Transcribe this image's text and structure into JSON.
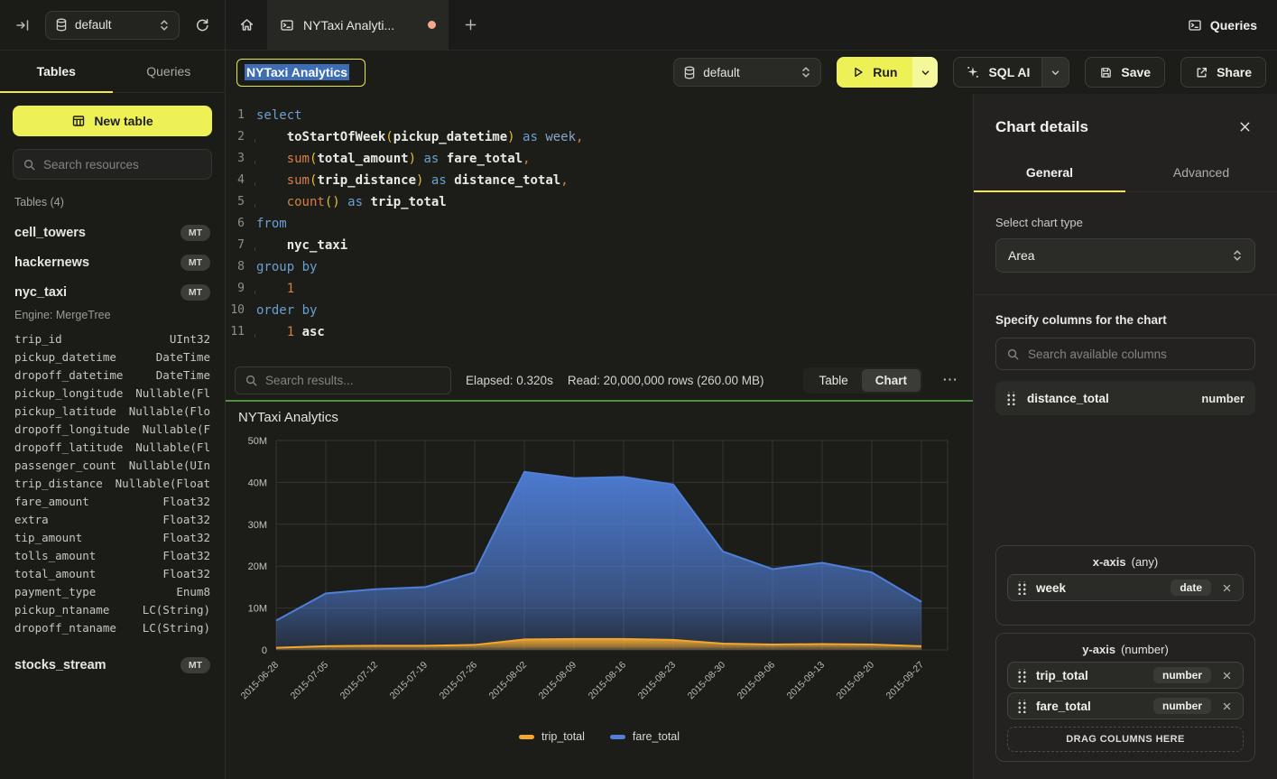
{
  "colors": {
    "accent_yellow": "#eef155",
    "tab_underline": "#f1e94a",
    "results_divider_green": "#4c9440",
    "title_selection_blue": "#3d6db2",
    "unsaved_dot": "#f2a98c",
    "series_trip_total": "#f2a72e",
    "series_fare_total": "#4f7fd9"
  },
  "topbar": {
    "db_selector": {
      "value": "default"
    },
    "tab": {
      "label": "NYTaxi Analyti..."
    },
    "queries_label": "Queries"
  },
  "sidebar": {
    "tabs": [
      {
        "label": "Tables"
      },
      {
        "label": "Queries"
      }
    ],
    "active_tab": "Tables",
    "new_table_label": "New table",
    "search_placeholder": "Search resources",
    "section_label": "Tables (4)",
    "tables": [
      {
        "name": "cell_towers",
        "badge": "MT"
      },
      {
        "name": "hackernews",
        "badge": "MT"
      },
      {
        "name": "nyc_taxi",
        "badge": "MT",
        "engine": "Engine: MergeTree",
        "columns": [
          [
            "trip_id",
            "UInt32"
          ],
          [
            "pickup_datetime",
            "DateTime"
          ],
          [
            "dropoff_datetime",
            "DateTime"
          ],
          [
            "pickup_longitude",
            "Nullable(Fl"
          ],
          [
            "pickup_latitude",
            "Nullable(Flo"
          ],
          [
            "dropoff_longitude",
            "Nullable(F"
          ],
          [
            "dropoff_latitude",
            "Nullable(Fl"
          ],
          [
            "passenger_count",
            "Nullable(UIn"
          ],
          [
            "trip_distance",
            "Nullable(Float"
          ],
          [
            "fare_amount",
            "Float32"
          ],
          [
            "extra",
            "Float32"
          ],
          [
            "tip_amount",
            "Float32"
          ],
          [
            "tolls_amount",
            "Float32"
          ],
          [
            "total_amount",
            "Float32"
          ],
          [
            "payment_type",
            "Enum8"
          ],
          [
            "pickup_ntaname",
            "LC(String)"
          ],
          [
            "dropoff_ntaname",
            "LC(String)"
          ]
        ]
      },
      {
        "name": "stocks_stream",
        "badge": "MT"
      }
    ]
  },
  "toolbar": {
    "title_value": "NYTaxi Analytics",
    "db_value": "default",
    "run_label": "Run",
    "sql_ai_label": "SQL AI",
    "save_label": "Save",
    "share_label": "Share"
  },
  "editor": {
    "lines": [
      {
        "n": "1",
        "indent": false,
        "tokens": [
          [
            "kw",
            "select"
          ]
        ]
      },
      {
        "n": "2",
        "indent": true,
        "tokens": [
          [
            "id",
            "toStartOfWeek"
          ],
          [
            "pn",
            "("
          ],
          [
            "id",
            "pickup_datetime"
          ],
          [
            "pn",
            ")"
          ],
          [
            "pl",
            " "
          ],
          [
            "kw",
            "as"
          ],
          [
            "pl",
            " "
          ],
          [
            "wk",
            "week"
          ],
          [
            "pu",
            ","
          ]
        ]
      },
      {
        "n": "3",
        "indent": true,
        "tokens": [
          [
            "fn",
            "sum"
          ],
          [
            "pn",
            "("
          ],
          [
            "id",
            "total_amount"
          ],
          [
            "pn",
            ")"
          ],
          [
            "pl",
            " "
          ],
          [
            "kw",
            "as"
          ],
          [
            "pl",
            " "
          ],
          [
            "id",
            "fare_total"
          ],
          [
            "pu",
            ","
          ]
        ]
      },
      {
        "n": "4",
        "indent": true,
        "tokens": [
          [
            "fn",
            "sum"
          ],
          [
            "pn",
            "("
          ],
          [
            "id",
            "trip_distance"
          ],
          [
            "pn",
            ")"
          ],
          [
            "pl",
            " "
          ],
          [
            "kw",
            "as"
          ],
          [
            "pl",
            " "
          ],
          [
            "id",
            "distance_total"
          ],
          [
            "pu",
            ","
          ]
        ]
      },
      {
        "n": "5",
        "indent": true,
        "tokens": [
          [
            "fn",
            "count"
          ],
          [
            "pn",
            "()"
          ],
          [
            "pl",
            " "
          ],
          [
            "kw",
            "as"
          ],
          [
            "pl",
            " "
          ],
          [
            "id",
            "trip_total"
          ]
        ]
      },
      {
        "n": "6",
        "indent": false,
        "tokens": [
          [
            "kw",
            "from"
          ]
        ]
      },
      {
        "n": "7",
        "indent": true,
        "tokens": [
          [
            "id",
            "nyc_taxi"
          ]
        ]
      },
      {
        "n": "8",
        "indent": false,
        "tokens": [
          [
            "kw",
            "group by"
          ]
        ]
      },
      {
        "n": "9",
        "indent": true,
        "tokens": [
          [
            "num",
            "1"
          ]
        ]
      },
      {
        "n": "10",
        "indent": false,
        "tokens": [
          [
            "kw",
            "order by"
          ]
        ]
      },
      {
        "n": "11",
        "indent": true,
        "tokens": [
          [
            "num",
            "1"
          ],
          [
            "pl",
            " "
          ],
          [
            "id",
            "asc"
          ]
        ]
      }
    ]
  },
  "results": {
    "search_placeholder": "Search results...",
    "elapsed": "Elapsed: 0.320s",
    "read": "Read: 20,000,000 rows (260.00 MB)",
    "view_table": "Table",
    "view_chart": "Chart",
    "active_view": "Chart",
    "more": "⋯"
  },
  "chart_data": {
    "type": "area",
    "title": "NYTaxi Analytics",
    "x": [
      "2015-06-28",
      "2015-07-05",
      "2015-07-12",
      "2015-07-19",
      "2015-07-26",
      "2015-08-02",
      "2015-08-09",
      "2015-08-16",
      "2015-08-23",
      "2015-08-30",
      "2015-09-06",
      "2015-09-13",
      "2015-09-20",
      "2015-09-27"
    ],
    "series": [
      {
        "name": "trip_total",
        "color": "#f2a72e",
        "values_millions": [
          0.5,
          0.9,
          1.0,
          1.0,
          1.2,
          2.5,
          2.6,
          2.6,
          2.4,
          1.5,
          1.3,
          1.4,
          1.3,
          0.9
        ]
      },
      {
        "name": "fare_total",
        "color": "#4f7fd9",
        "values_millions": [
          7,
          13.5,
          14.5,
          15,
          18.5,
          42.5,
          41,
          41.3,
          39.5,
          23.5,
          19.3,
          20.8,
          18.5,
          11.5
        ]
      }
    ],
    "ylim_millions": [
      0,
      50
    ],
    "yticks_millions": [
      0,
      10,
      20,
      30,
      40,
      50
    ],
    "grid": true,
    "legend_position": "bottom"
  },
  "panel": {
    "title": "Chart details",
    "tabs": [
      {
        "label": "General"
      },
      {
        "label": "Advanced"
      }
    ],
    "active_tab": "General",
    "chart_type_label": "Select chart type",
    "chart_type_value": "Area",
    "columns_label": "Specify columns for the chart",
    "search_placeholder": "Search available columns",
    "available_columns": [
      {
        "name": "distance_total",
        "type": "number"
      }
    ],
    "x_axis": {
      "label": "x-axis",
      "hint": "(any)",
      "items": [
        {
          "name": "week",
          "type": "date"
        }
      ]
    },
    "y_axis": {
      "label": "y-axis",
      "hint": "(number)",
      "items": [
        {
          "name": "trip_total",
          "type": "number"
        },
        {
          "name": "fare_total",
          "type": "number"
        }
      ],
      "drop_label": "DRAG COLUMNS HERE"
    }
  }
}
